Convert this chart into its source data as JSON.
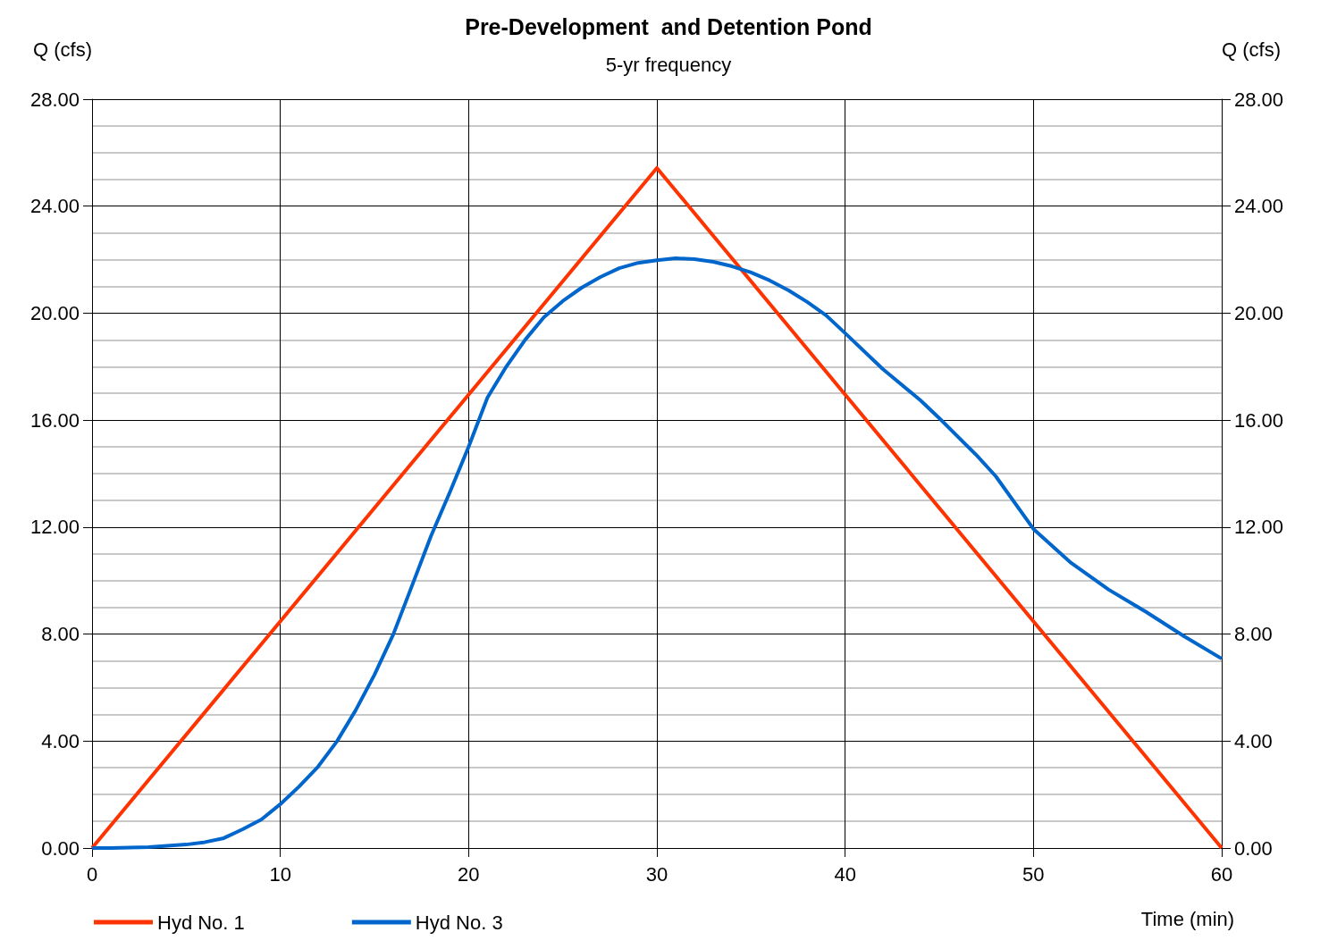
{
  "chart_data": {
    "type": "line",
    "title": "Pre-Development  and Detention Pond",
    "subtitle": "5-yr frequency",
    "xlabel": "Time (min)",
    "ylabel": "Q (cfs)",
    "y2label": "Q (cfs)",
    "xlim": [
      0,
      60
    ],
    "xticks": [
      0,
      10,
      20,
      30,
      40,
      50,
      60
    ],
    "ylim": [
      0,
      28
    ],
    "yticks": [
      {
        "value": 0,
        "label": "0.00"
      },
      {
        "value": 4,
        "label": "4.00"
      },
      {
        "value": 8,
        "label": "8.00"
      },
      {
        "value": 12,
        "label": "12.00"
      },
      {
        "value": 16,
        "label": "16.00"
      },
      {
        "value": 20,
        "label": "20.00"
      },
      {
        "value": 24,
        "label": "24.00"
      },
      {
        "value": 28,
        "label": "28.00"
      }
    ],
    "y2lim": [
      0,
      28
    ],
    "y2ticks": [
      {
        "value": 0,
        "label": "0.00"
      },
      {
        "value": 4,
        "label": "4.00"
      },
      {
        "value": 8,
        "label": "8.00"
      },
      {
        "value": 12,
        "label": "12.00"
      },
      {
        "value": 16,
        "label": "16.00"
      },
      {
        "value": 20,
        "label": "20.00"
      },
      {
        "value": 24,
        "label": "24.00"
      },
      {
        "value": 28,
        "label": "28.00"
      }
    ],
    "grid": true,
    "legend": "bottom left",
    "marker": "none",
    "line_style": "solid",
    "series": [
      {
        "name": "Hyd No. 1",
        "color": "#ff3300",
        "x": [
          0,
          30,
          60
        ],
        "values": [
          0,
          25.43,
          0
        ]
      },
      {
        "name": "Hyd No. 3",
        "color": "#0066cc",
        "x": [
          0,
          1,
          3,
          5,
          6,
          7,
          8,
          9,
          10,
          11,
          12,
          13,
          14,
          15,
          16,
          17,
          18,
          19,
          20,
          21,
          22,
          23,
          24,
          25,
          26,
          27,
          28,
          29,
          30,
          31,
          32,
          33,
          34,
          35,
          36,
          37,
          38,
          39,
          40,
          42,
          44,
          45,
          47,
          48,
          50,
          52,
          54,
          56,
          58,
          60
        ],
        "values": [
          0,
          0,
          0.03,
          0.13,
          0.22,
          0.37,
          0.7,
          1.07,
          1.64,
          2.3,
          3.04,
          3.98,
          5.15,
          6.48,
          7.99,
          9.82,
          11.66,
          13.3,
          15.0,
          16.84,
          18.0,
          19.0,
          19.85,
          20.45,
          20.95,
          21.35,
          21.68,
          21.88,
          21.98,
          22.05,
          22.02,
          21.92,
          21.75,
          21.52,
          21.22,
          20.85,
          20.41,
          19.91,
          19.25,
          17.91,
          16.74,
          16.07,
          14.67,
          13.9,
          11.93,
          10.66,
          9.66,
          8.82,
          7.92,
          7.08
        ]
      }
    ]
  }
}
